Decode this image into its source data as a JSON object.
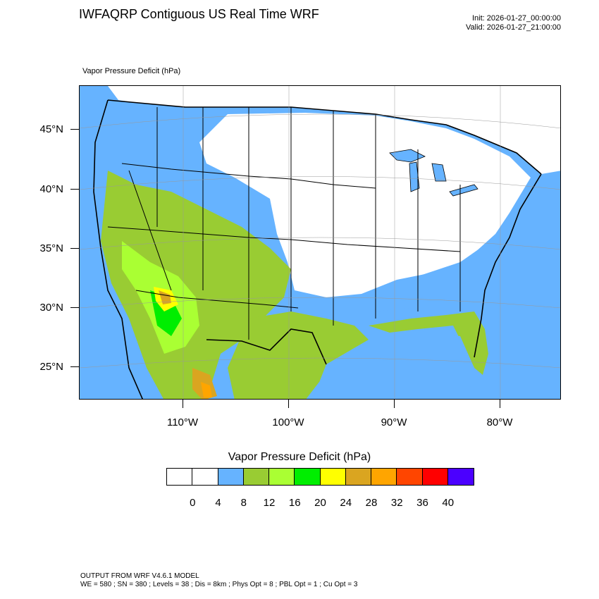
{
  "title": "IWFAQRP Contiguous US Real Time WRF",
  "init": "Init: 2026-01-27_00:00:00",
  "valid": "Valid: 2026-01-27_21:00:00",
  "field_label": "Vapor Pressure Deficit   (hPa)",
  "lat_labels": [
    "45°N",
    "40°N",
    "35°N",
    "30°N",
    "25°N"
  ],
  "lon_labels": [
    "110°W",
    "100°W",
    "90°W",
    "80°W"
  ],
  "colorbar": {
    "title": "Vapor Pressure Deficit  (hPa)",
    "colors": [
      "#ffffff",
      "#ffffff",
      "#66b3ff",
      "#99cc33",
      "#aaff33",
      "#00ee00",
      "#ffff00",
      "#daa520",
      "#ffa500",
      "#ff4500",
      "#ff0000",
      "#4b00ff"
    ],
    "labels": [
      "0",
      "4",
      "8",
      "12",
      "16",
      "20",
      "24",
      "28",
      "32",
      "36",
      "40"
    ]
  },
  "footer": {
    "line1": "OUTPUT FROM WRF V4.6.1 MODEL",
    "line2": "WE = 580 ; SN = 380 ; Levels = 38 ; Dis = 8km ; Phys Opt = 8 ; PBL Opt = 1 ; Cu Opt = 3"
  }
}
